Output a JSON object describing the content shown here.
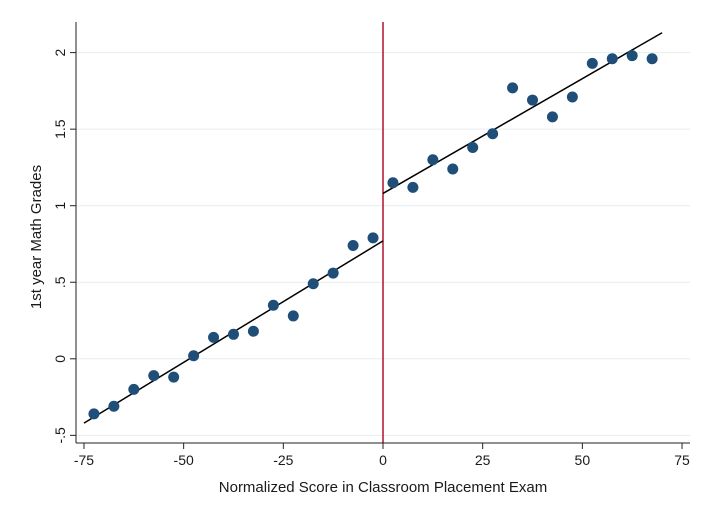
{
  "chart_data": {
    "type": "scatter",
    "title": "",
    "xlabel": "Normalized Score in Classroom Placement Exam",
    "ylabel": "1st year Math Grades",
    "xlim": [
      -77,
      77
    ],
    "ylim": [
      -0.55,
      2.2
    ],
    "x_ticks": [
      -75,
      -50,
      -25,
      0,
      25,
      50,
      75
    ],
    "x_tick_labels": [
      "-75",
      "-50",
      "-25",
      "0",
      "25",
      "50",
      "75"
    ],
    "y_ticks": [
      -0.5,
      0,
      0.5,
      1,
      1.5,
      2
    ],
    "y_tick_labels": [
      "-.5",
      "0",
      ".5",
      "1",
      "1.5",
      "2"
    ],
    "grid": "horizontal",
    "cutoff_x": 0,
    "series": [
      {
        "points": [
          {
            "x": -72.5,
            "y": -0.36
          },
          {
            "x": -67.5,
            "y": -0.31
          },
          {
            "x": -62.5,
            "y": -0.2
          },
          {
            "x": -57.5,
            "y": -0.11
          },
          {
            "x": -52.5,
            "y": -0.12
          },
          {
            "x": -47.5,
            "y": 0.02
          },
          {
            "x": -42.5,
            "y": 0.14
          },
          {
            "x": -37.5,
            "y": 0.16
          },
          {
            "x": -32.5,
            "y": 0.18
          },
          {
            "x": -27.5,
            "y": 0.35
          },
          {
            "x": -22.5,
            "y": 0.28
          },
          {
            "x": -17.5,
            "y": 0.49
          },
          {
            "x": -12.5,
            "y": 0.56
          },
          {
            "x": -7.5,
            "y": 0.74
          },
          {
            "x": -2.5,
            "y": 0.79
          },
          {
            "x": 2.5,
            "y": 1.15
          },
          {
            "x": 7.5,
            "y": 1.12
          },
          {
            "x": 12.5,
            "y": 1.3
          },
          {
            "x": 17.5,
            "y": 1.24
          },
          {
            "x": 22.5,
            "y": 1.38
          },
          {
            "x": 27.5,
            "y": 1.47
          },
          {
            "x": 32.5,
            "y": 1.77
          },
          {
            "x": 37.5,
            "y": 1.69
          },
          {
            "x": 42.5,
            "y": 1.58
          },
          {
            "x": 47.5,
            "y": 1.71
          },
          {
            "x": 52.5,
            "y": 1.93
          },
          {
            "x": 57.5,
            "y": 1.96
          },
          {
            "x": 62.5,
            "y": 1.98
          },
          {
            "x": 67.5,
            "y": 1.96
          }
        ]
      }
    ],
    "fit_lines": [
      {
        "x": [
          -75,
          0
        ],
        "y": [
          -0.42,
          0.77
        ]
      },
      {
        "x": [
          0,
          70
        ],
        "y": [
          1.08,
          2.13
        ]
      }
    ],
    "colors": {
      "marker": "#1f4e79",
      "fit_line": "#000000",
      "cutoff_line": "#b2102f",
      "grid": "#e6eef0",
      "axis": "#222222"
    }
  }
}
